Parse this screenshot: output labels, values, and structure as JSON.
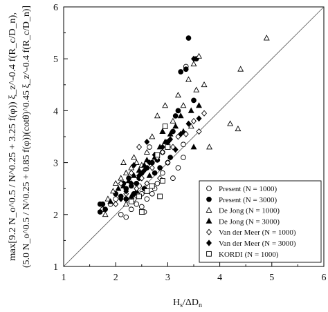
{
  "chart_data": {
    "type": "scatter",
    "xlabel_main": "H",
    "xlabel_sub1": "s",
    "xlabel_mid": "/ΔD",
    "xlabel_sub2": "n",
    "ylabel_line1": "max[9.2 N_o^0.5 / N^0.25 + 3.25 f(φ)) ξ_z^-0.4 f(R_c/D_n),",
    "ylabel_line2": "(5.0 N_o^0.5 / N^0.25 + 0.85 f(φ))(cotθ)^0.45 ξ_z^-0.4 f(R_c/D_n)]",
    "xlim": [
      1,
      6
    ],
    "ylim": [
      1,
      6
    ],
    "x_ticks": [
      "1",
      "2",
      "3",
      "4",
      "5",
      "6"
    ],
    "y_ticks": [
      "1",
      "2",
      "3",
      "4",
      "5",
      "6"
    ],
    "reference_line": "y = x",
    "legend_position": "bottom-right",
    "series": [
      {
        "name": "Present (N = 1000)",
        "marker": "open-circle",
        "points": [
          [
            1.75,
            2.1
          ],
          [
            1.9,
            2.2
          ],
          [
            2.0,
            2.3
          ],
          [
            2.1,
            2.0
          ],
          [
            2.2,
            1.95
          ],
          [
            2.3,
            2.1
          ],
          [
            2.4,
            2.2
          ],
          [
            2.5,
            2.15
          ],
          [
            2.55,
            2.05
          ],
          [
            2.6,
            2.3
          ],
          [
            2.7,
            2.4
          ],
          [
            2.75,
            2.5
          ],
          [
            2.8,
            2.6
          ],
          [
            2.9,
            2.8
          ],
          [
            3.0,
            3.0
          ],
          [
            3.1,
            2.7
          ],
          [
            3.2,
            2.9
          ],
          [
            3.3,
            3.1
          ],
          [
            3.35,
            4.85
          ],
          [
            3.3,
            3.35
          ],
          [
            2.65,
            3.3
          ],
          [
            2.5,
            2.4
          ],
          [
            2.35,
            2.3
          ],
          [
            2.45,
            2.55
          ]
        ]
      },
      {
        "name": "Present (N = 3000)",
        "marker": "filled-circle",
        "points": [
          [
            1.7,
            2.2
          ],
          [
            1.7,
            2.05
          ],
          [
            1.75,
            2.2
          ],
          [
            1.8,
            2.1
          ],
          [
            2.0,
            2.4
          ],
          [
            2.1,
            2.35
          ],
          [
            2.2,
            2.5
          ],
          [
            2.3,
            2.55
          ],
          [
            2.35,
            2.4
          ],
          [
            2.4,
            2.6
          ],
          [
            2.45,
            2.7
          ],
          [
            2.5,
            2.8
          ],
          [
            2.55,
            2.5
          ],
          [
            2.6,
            2.9
          ],
          [
            2.7,
            3.0
          ],
          [
            2.75,
            2.8
          ],
          [
            2.8,
            3.05
          ],
          [
            2.85,
            2.9
          ],
          [
            2.9,
            3.2
          ],
          [
            3.0,
            3.4
          ],
          [
            3.05,
            3.1
          ],
          [
            3.1,
            3.6
          ],
          [
            3.15,
            3.9
          ],
          [
            3.2,
            4.0
          ],
          [
            3.25,
            4.75
          ],
          [
            3.35,
            4.8
          ],
          [
            3.5,
            4.2
          ],
          [
            3.4,
            5.4
          ],
          [
            3.55,
            5.0
          ],
          [
            2.2,
            2.3
          ],
          [
            2.25,
            2.7
          ],
          [
            2.15,
            2.6
          ]
        ]
      },
      {
        "name": "De Jong (N = 1000)",
        "marker": "open-triangle",
        "points": [
          [
            1.8,
            2.0
          ],
          [
            1.85,
            2.3
          ],
          [
            1.95,
            2.45
          ],
          [
            2.0,
            2.6
          ],
          [
            2.1,
            2.7
          ],
          [
            2.2,
            2.8
          ],
          [
            2.3,
            2.9
          ],
          [
            2.4,
            3.0
          ],
          [
            2.5,
            2.95
          ],
          [
            2.6,
            3.2
          ],
          [
            2.7,
            3.5
          ],
          [
            2.8,
            3.9
          ],
          [
            2.9,
            3.6
          ],
          [
            3.0,
            3.3
          ],
          [
            3.1,
            3.8
          ],
          [
            3.2,
            4.3
          ],
          [
            3.3,
            4.1
          ],
          [
            3.4,
            4.6
          ],
          [
            3.5,
            4.9
          ],
          [
            3.6,
            5.05
          ],
          [
            3.7,
            4.5
          ],
          [
            3.8,
            3.3
          ],
          [
            4.2,
            3.75
          ],
          [
            4.35,
            3.65
          ],
          [
            4.4,
            4.8
          ],
          [
            4.9,
            5.4
          ],
          [
            3.55,
            4.4
          ],
          [
            3.45,
            3.7
          ],
          [
            2.95,
            4.1
          ],
          [
            2.2,
            2.2
          ],
          [
            2.15,
            3.0
          ],
          [
            2.35,
            3.1
          ]
        ]
      },
      {
        "name": "De Jong (N = 3000)",
        "marker": "filled-triangle",
        "points": [
          [
            1.9,
            2.25
          ],
          [
            2.05,
            2.5
          ],
          [
            2.15,
            2.55
          ],
          [
            2.25,
            2.65
          ],
          [
            2.35,
            2.75
          ],
          [
            2.45,
            2.85
          ],
          [
            2.55,
            2.95
          ],
          [
            2.6,
            3.05
          ],
          [
            2.65,
            2.75
          ],
          [
            2.75,
            3.1
          ],
          [
            2.85,
            3.3
          ],
          [
            2.95,
            3.4
          ],
          [
            3.05,
            3.55
          ],
          [
            3.15,
            3.7
          ],
          [
            3.25,
            3.9
          ],
          [
            3.3,
            3.6
          ],
          [
            3.45,
            4.0
          ],
          [
            3.6,
            4.1
          ],
          [
            3.5,
            3.3
          ],
          [
            2.4,
            2.45
          ],
          [
            2.3,
            2.35
          ],
          [
            2.9,
            3.6
          ]
        ]
      },
      {
        "name": "Van der Meer (N = 1000)",
        "marker": "open-diamond",
        "points": [
          [
            2.0,
            2.2
          ],
          [
            2.1,
            2.6
          ],
          [
            2.2,
            2.4
          ],
          [
            2.3,
            2.8
          ],
          [
            2.4,
            2.5
          ],
          [
            2.5,
            2.7
          ],
          [
            2.6,
            2.6
          ],
          [
            2.7,
            2.9
          ],
          [
            2.8,
            3.1
          ],
          [
            2.9,
            3.2
          ],
          [
            3.0,
            3.0
          ],
          [
            3.1,
            3.3
          ],
          [
            3.2,
            3.5
          ],
          [
            3.35,
            3.55
          ],
          [
            3.5,
            3.8
          ],
          [
            3.6,
            3.6
          ],
          [
            3.7,
            3.95
          ],
          [
            2.45,
            3.3
          ],
          [
            2.85,
            2.7
          ]
        ]
      },
      {
        "name": "Van der Meer (N = 3000)",
        "marker": "filled-diamond",
        "points": [
          [
            2.1,
            2.3
          ],
          [
            2.2,
            2.45
          ],
          [
            2.3,
            2.6
          ],
          [
            2.45,
            2.75
          ],
          [
            2.55,
            2.85
          ],
          [
            2.65,
            3.0
          ],
          [
            2.75,
            3.15
          ],
          [
            2.9,
            3.3
          ],
          [
            3.05,
            3.45
          ],
          [
            3.15,
            3.25
          ],
          [
            3.25,
            3.55
          ],
          [
            3.4,
            3.75
          ],
          [
            3.6,
            3.85
          ],
          [
            3.5,
            5.0
          ],
          [
            2.6,
            3.4
          ],
          [
            2.35,
            2.95
          ]
        ]
      },
      {
        "name": "KORDI (N = 1000)",
        "marker": "open-square",
        "points": [
          [
            2.3,
            2.25
          ],
          [
            2.45,
            2.35
          ],
          [
            2.6,
            2.45
          ],
          [
            2.7,
            2.55
          ],
          [
            2.8,
            3.15
          ],
          [
            2.9,
            2.65
          ],
          [
            2.95,
            3.7
          ],
          [
            3.0,
            3.3
          ],
          [
            2.5,
            2.05
          ],
          [
            2.85,
            2.35
          ]
        ]
      }
    ]
  }
}
